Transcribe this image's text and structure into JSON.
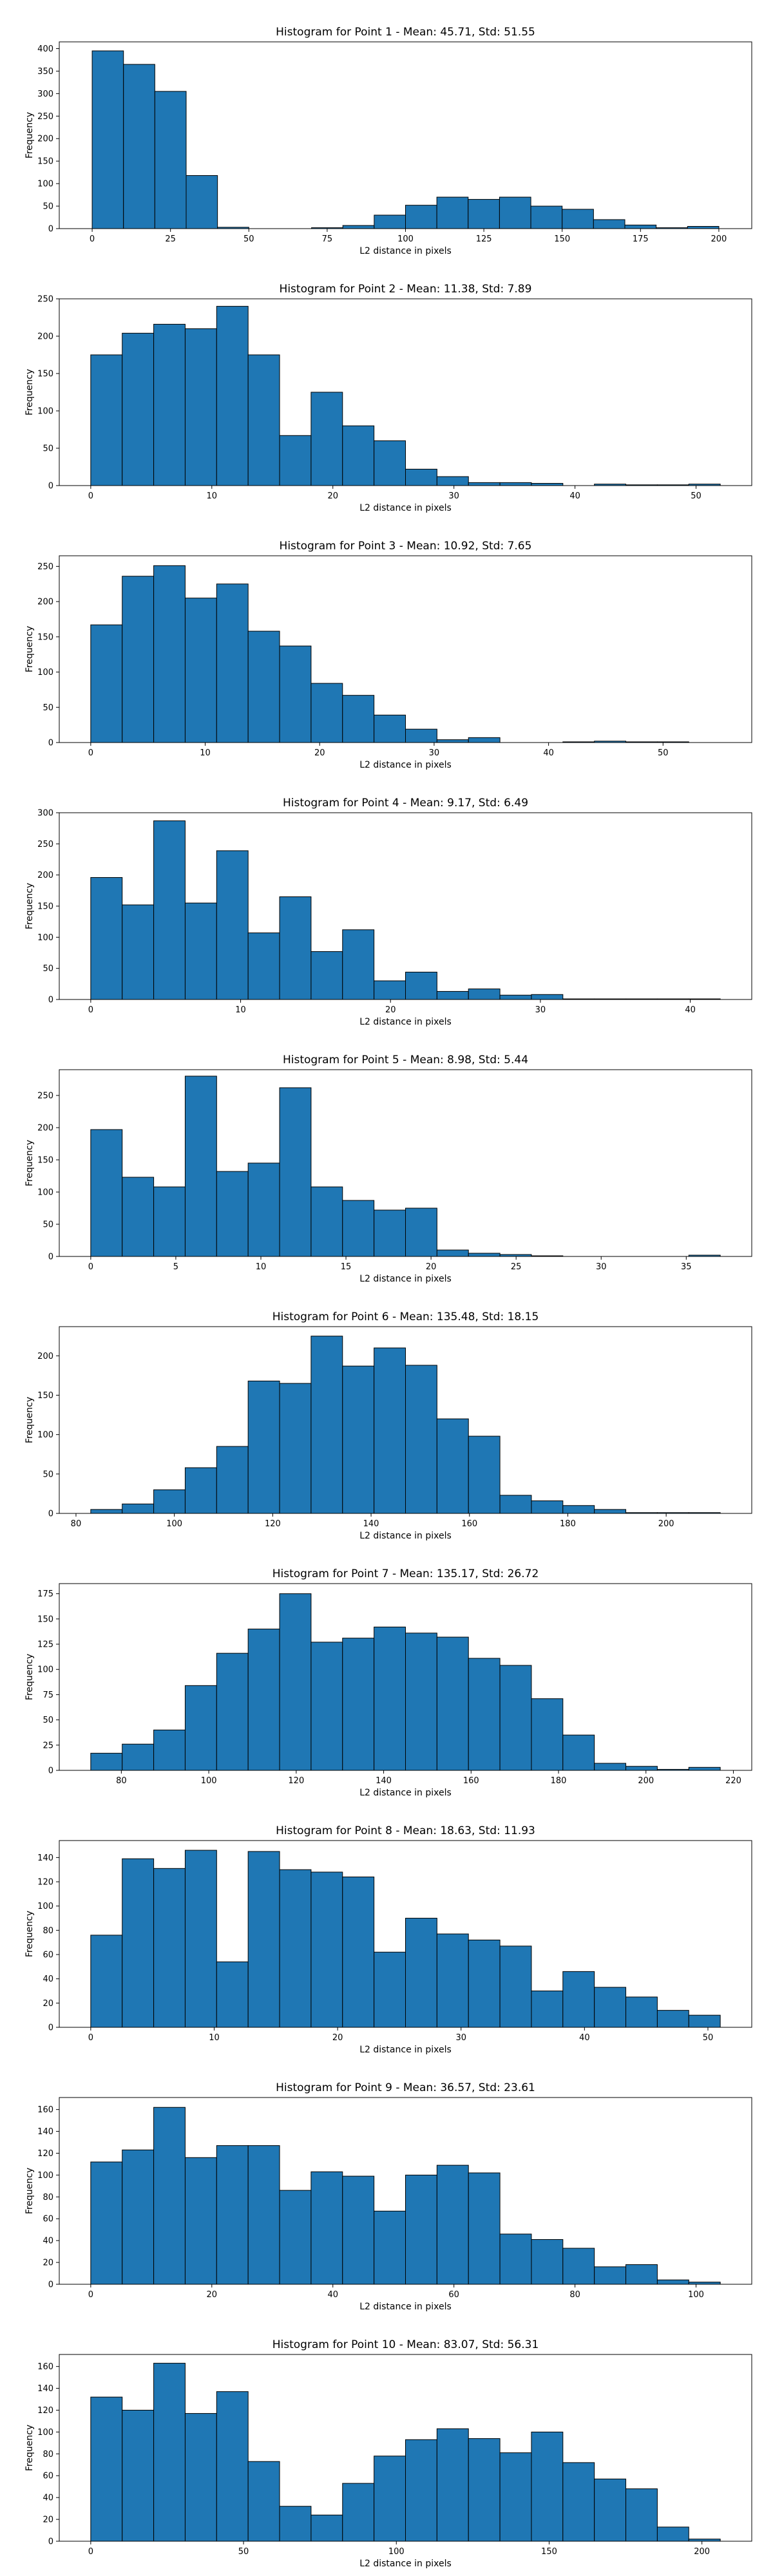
{
  "chart_data": [
    {
      "type": "bar",
      "title": "Histogram for Point 1 - Mean: 45.71, Std: 51.55",
      "xlabel": "L2 distance in pixels",
      "ylabel": "Frequency",
      "bin_edges": [
        0,
        10,
        20,
        30,
        40,
        50,
        60,
        70,
        80,
        90,
        100,
        110,
        120,
        130,
        140,
        150,
        160,
        170,
        180,
        190,
        200,
        210
      ],
      "values": [
        395,
        365,
        305,
        118,
        3,
        0,
        0,
        2,
        7,
        30,
        52,
        70,
        65,
        70,
        50,
        43,
        20,
        8,
        2,
        5,
        0
      ],
      "xlim": [
        -10.5,
        210.5
      ],
      "ylim": [
        0,
        415
      ],
      "xticks": [
        0,
        25,
        50,
        75,
        100,
        125,
        150,
        175,
        200
      ],
      "yticks": [
        0,
        50,
        100,
        150,
        200,
        250,
        300,
        350,
        400
      ],
      "grid": false
    },
    {
      "type": "bar",
      "title": "Histogram for Point 2 - Mean: 11.38, Std: 7.89",
      "xlabel": "L2 distance in pixels",
      "ylabel": "Frequency",
      "bin_edges": [
        0,
        2.6,
        5.2,
        7.8,
        10.4,
        13,
        15.6,
        18.2,
        20.8,
        23.4,
        26,
        28.6,
        31.2,
        33.8,
        36.4,
        39,
        41.6,
        44.2,
        46.8,
        49.4,
        52
      ],
      "values": [
        175,
        204,
        216,
        210,
        240,
        175,
        67,
        125,
        80,
        60,
        22,
        12,
        4,
        4,
        3,
        0,
        2,
        1,
        1,
        2
      ],
      "xlim": [
        -2.6,
        54.6
      ],
      "ylim": [
        0,
        250
      ],
      "xticks": [
        0,
        10,
        20,
        30,
        40,
        50
      ],
      "yticks": [
        0,
        50,
        100,
        150,
        200,
        250
      ],
      "grid": false
    },
    {
      "type": "bar",
      "title": "Histogram for Point 3 - Mean: 10.92, Std: 7.65",
      "xlabel": "L2 distance in pixels",
      "ylabel": "Frequency",
      "bin_edges": [
        0,
        2.75,
        5.5,
        8.25,
        11,
        13.75,
        16.5,
        19.25,
        22,
        24.75,
        27.5,
        30.25,
        33,
        35.75,
        38.5,
        41.25,
        44,
        46.75,
        49.5,
        52.25,
        55
      ],
      "values": [
        167,
        236,
        251,
        205,
        225,
        158,
        137,
        84,
        67,
        39,
        19,
        4,
        7,
        0,
        0,
        1,
        2,
        1,
        1,
        0
      ],
      "xlim": [
        -2.75,
        57.75
      ],
      "ylim": [
        0,
        265
      ],
      "xticks": [
        0,
        10,
        20,
        30,
        40,
        50
      ],
      "yticks": [
        0,
        50,
        100,
        150,
        200,
        250
      ],
      "grid": false
    },
    {
      "type": "bar",
      "title": "Histogram for Point 4 - Mean: 9.17, Std: 6.49",
      "xlabel": "L2 distance in pixels",
      "ylabel": "Frequency",
      "bin_edges": [
        0,
        2.1,
        4.2,
        6.3,
        8.4,
        10.5,
        12.6,
        14.7,
        16.8,
        18.9,
        21,
        23.1,
        25.2,
        27.3,
        29.4,
        31.5,
        33.6,
        35.7,
        37.8,
        39.9,
        42
      ],
      "values": [
        196,
        152,
        287,
        155,
        239,
        107,
        165,
        77,
        112,
        30,
        44,
        13,
        17,
        7,
        8,
        1,
        1,
        1,
        1,
        1
      ],
      "xlim": [
        -2.1,
        44.1
      ],
      "ylim": [
        0,
        300
      ],
      "xticks": [
        0,
        10,
        20,
        30,
        40
      ],
      "yticks": [
        0,
        50,
        100,
        150,
        200,
        250,
        300
      ],
      "grid": false
    },
    {
      "type": "bar",
      "title": "Histogram for Point 5 - Mean: 8.98, Std: 5.44",
      "xlabel": "L2 distance in pixels",
      "ylabel": "Frequency",
      "bin_edges": [
        0,
        1.85,
        3.7,
        5.55,
        7.4,
        9.25,
        11.1,
        12.95,
        14.8,
        16.65,
        18.5,
        20.35,
        22.2,
        24.05,
        25.9,
        27.75,
        29.6,
        31.45,
        33.3,
        35.15,
        37
      ],
      "values": [
        197,
        123,
        108,
        280,
        132,
        145,
        262,
        108,
        87,
        72,
        75,
        10,
        5,
        3,
        1,
        0,
        0,
        0,
        0,
        2
      ],
      "xlim": [
        -1.85,
        38.85
      ],
      "ylim": [
        0,
        290
      ],
      "xticks": [
        0,
        5,
        10,
        15,
        20,
        25,
        30,
        35
      ],
      "yticks": [
        0,
        50,
        100,
        150,
        200,
        250
      ],
      "grid": false
    },
    {
      "type": "bar",
      "title": "Histogram for Point 6 - Mean: 135.48, Std: 18.15",
      "xlabel": "L2 distance in pixels",
      "ylabel": "Frequency",
      "bin_edges": [
        83,
        89.4,
        95.8,
        102.2,
        108.6,
        115,
        121.4,
        127.8,
        134.2,
        140.6,
        147,
        153.4,
        159.8,
        166.2,
        172.6,
        179,
        185.4,
        191.8,
        198.2,
        204.6,
        211
      ],
      "values": [
        5,
        12,
        30,
        58,
        85,
        168,
        165,
        225,
        187,
        210,
        188,
        120,
        98,
        23,
        16,
        10,
        5,
        1,
        1,
        1
      ],
      "xlim": [
        76.6,
        217.4
      ],
      "ylim": [
        0,
        237
      ],
      "xticks": [
        80,
        100,
        120,
        140,
        160,
        180,
        200
      ],
      "yticks": [
        0,
        50,
        100,
        150,
        200
      ],
      "grid": false
    },
    {
      "type": "bar",
      "title": "Histogram for Point 7 - Mean: 135.17, Std: 26.72",
      "xlabel": "L2 distance in pixels",
      "ylabel": "Frequency",
      "bin_edges": [
        73,
        80.2,
        87.4,
        94.6,
        101.8,
        109,
        116.2,
        123.4,
        130.6,
        137.8,
        145,
        152.2,
        159.4,
        166.6,
        173.8,
        181,
        188.2,
        195.4,
        202.6,
        209.8,
        217
      ],
      "values": [
        17,
        26,
        40,
        84,
        116,
        140,
        175,
        127,
        131,
        142,
        136,
        132,
        111,
        104,
        71,
        35,
        7,
        4,
        1,
        3
      ],
      "xlim": [
        65.8,
        224.2
      ],
      "ylim": [
        0,
        185
      ],
      "xticks": [
        80,
        100,
        120,
        140,
        160,
        180,
        200,
        220
      ],
      "yticks": [
        0,
        25,
        50,
        75,
        100,
        125,
        150,
        175
      ],
      "grid": false
    },
    {
      "type": "bar",
      "title": "Histogram for Point 8 - Mean: 18.63, Std: 11.93",
      "xlabel": "L2 distance in pixels",
      "ylabel": "Frequency",
      "bin_edges": [
        0,
        2.55,
        5.1,
        7.65,
        10.2,
        12.75,
        15.3,
        17.85,
        20.4,
        22.95,
        25.5,
        28.05,
        30.6,
        33.15,
        35.7,
        38.25,
        40.8,
        43.35,
        45.9,
        48.45,
        51
      ],
      "values": [
        76,
        139,
        131,
        146,
        54,
        145,
        130,
        128,
        124,
        62,
        90,
        77,
        72,
        67,
        30,
        46,
        33,
        25,
        14,
        10
      ],
      "xlim": [
        -2.55,
        53.55
      ],
      "ylim": [
        0,
        154
      ],
      "xticks": [
        0,
        10,
        20,
        30,
        40,
        50
      ],
      "yticks": [
        0,
        20,
        40,
        60,
        80,
        100,
        120,
        140
      ],
      "grid": false
    },
    {
      "type": "bar",
      "title": "Histogram for Point 9 - Mean: 36.57, Std: 23.61",
      "xlabel": "L2 distance in pixels",
      "ylabel": "Frequency",
      "bin_edges": [
        0,
        5.2,
        10.4,
        15.6,
        20.8,
        26,
        31.2,
        36.4,
        41.6,
        46.8,
        52,
        57.2,
        62.4,
        67.6,
        72.8,
        78,
        83.2,
        88.4,
        93.6,
        98.8,
        104
      ],
      "values": [
        112,
        123,
        162,
        116,
        127,
        127,
        86,
        103,
        99,
        67,
        100,
        109,
        102,
        46,
        41,
        33,
        16,
        18,
        4,
        2
      ],
      "xlim": [
        -5.2,
        109.2
      ],
      "ylim": [
        0,
        171
      ],
      "xticks": [
        0,
        20,
        40,
        60,
        80,
        100
      ],
      "yticks": [
        0,
        20,
        40,
        60,
        80,
        100,
        120,
        140,
        160
      ],
      "grid": false
    },
    {
      "type": "bar",
      "title": "Histogram for Point 10 - Mean: 83.07, Std: 56.31",
      "xlabel": "L2 distance in pixels",
      "ylabel": "Frequency",
      "bin_edges": [
        0,
        10.3,
        20.6,
        30.9,
        41.2,
        51.5,
        61.8,
        72.1,
        82.4,
        92.7,
        103,
        113.3,
        123.6,
        133.9,
        144.2,
        154.5,
        164.8,
        175.1,
        185.4,
        195.7,
        206
      ],
      "values": [
        132,
        120,
        163,
        117,
        137,
        73,
        32,
        24,
        53,
        78,
        93,
        103,
        94,
        81,
        100,
        72,
        57,
        48,
        13,
        2
      ],
      "xlim": [
        -10.3,
        216.3
      ],
      "ylim": [
        0,
        171
      ],
      "xticks": [
        0,
        50,
        100,
        150,
        200
      ],
      "yticks": [
        0,
        20,
        40,
        60,
        80,
        100,
        120,
        140,
        160
      ],
      "grid": false
    }
  ]
}
